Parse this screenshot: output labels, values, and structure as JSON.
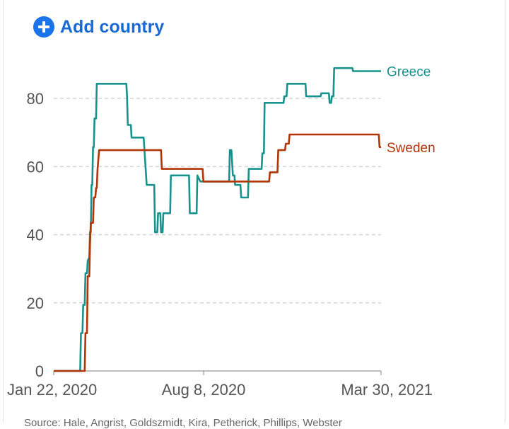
{
  "add_country": {
    "label": "Add country",
    "icon": "plus-circle-icon",
    "color": "#1a73e8"
  },
  "source_text": "Source: Hale, Angrist, Goldszmidt, Kira, Petherick, Phillips, Webster",
  "chart_data": {
    "type": "line",
    "title": "",
    "xlabel": "",
    "ylabel": "",
    "x_range": [
      "2020-01-22",
      "2021-03-30"
    ],
    "x_ticks": [
      "Jan 22, 2020",
      "Aug 8, 2020",
      "Mar 30, 2021"
    ],
    "ylim": [
      0,
      90
    ],
    "y_ticks": [
      0,
      20,
      40,
      60,
      80
    ],
    "grid": "horizontal dashed",
    "legend": "inline at line ends",
    "series": [
      {
        "name": "Greece",
        "color": "#17928c",
        "points": [
          [
            "2020-01-22",
            0
          ],
          [
            "2020-02-26",
            0
          ],
          [
            "2020-02-27",
            11.1
          ],
          [
            "2020-02-29",
            11.1
          ],
          [
            "2020-03-01",
            19.4
          ],
          [
            "2020-03-03",
            19.4
          ],
          [
            "2020-03-04",
            28.7
          ],
          [
            "2020-03-06",
            28.7
          ],
          [
            "2020-03-07",
            32.4
          ],
          [
            "2020-03-09",
            33.3
          ],
          [
            "2020-03-10",
            40.7
          ],
          [
            "2020-03-11",
            40.7
          ],
          [
            "2020-03-12",
            54.6
          ],
          [
            "2020-03-13",
            54.6
          ],
          [
            "2020-03-14",
            65.7
          ],
          [
            "2020-03-15",
            65.7
          ],
          [
            "2020-03-16",
            74.1
          ],
          [
            "2020-03-18",
            74.1
          ],
          [
            "2020-03-19",
            84.3
          ],
          [
            "2020-04-27",
            84.3
          ],
          [
            "2020-04-28",
            80.6
          ],
          [
            "2020-04-29",
            72.2
          ],
          [
            "2020-05-03",
            72.2
          ],
          [
            "2020-05-04",
            68.5
          ],
          [
            "2020-05-20",
            68.5
          ],
          [
            "2020-05-24",
            54.6
          ],
          [
            "2020-06-03",
            54.6
          ],
          [
            "2020-06-04",
            40.7
          ],
          [
            "2020-06-07",
            40.7
          ],
          [
            "2020-06-08",
            46.3
          ],
          [
            "2020-06-11",
            46.3
          ],
          [
            "2020-06-12",
            40.7
          ],
          [
            "2020-06-14",
            40.7
          ],
          [
            "2020-06-15",
            46.3
          ],
          [
            "2020-06-24",
            46.3
          ],
          [
            "2020-06-25",
            57.4
          ],
          [
            "2020-07-19",
            57.4
          ],
          [
            "2020-07-20",
            46.3
          ],
          [
            "2020-07-29",
            46.3
          ],
          [
            "2020-07-30",
            57.4
          ],
          [
            "2020-08-03",
            55.6
          ],
          [
            "2020-09-10",
            55.6
          ],
          [
            "2020-09-11",
            64.8
          ],
          [
            "2020-09-13",
            64.8
          ],
          [
            "2020-09-15",
            57.4
          ],
          [
            "2020-09-17",
            57.4
          ],
          [
            "2020-09-18",
            54.6
          ],
          [
            "2020-09-25",
            54.6
          ],
          [
            "2020-09-26",
            50.9
          ],
          [
            "2020-10-05",
            50.9
          ],
          [
            "2020-10-06",
            59.3
          ],
          [
            "2020-10-23",
            59.3
          ],
          [
            "2020-10-24",
            63.9
          ],
          [
            "2020-10-26",
            63.9
          ],
          [
            "2020-10-27",
            78.7
          ],
          [
            "2020-11-21",
            78.7
          ],
          [
            "2020-11-22",
            80.6
          ],
          [
            "2020-11-25",
            80.6
          ],
          [
            "2020-11-26",
            84.3
          ],
          [
            "2020-12-20",
            84.3
          ],
          [
            "2020-12-21",
            80.6
          ],
          [
            "2021-01-09",
            80.6
          ],
          [
            "2021-01-10",
            81.5
          ],
          [
            "2021-01-20",
            81.5
          ],
          [
            "2021-01-21",
            78.7
          ],
          [
            "2021-01-23",
            78.7
          ],
          [
            "2021-01-24",
            80.6
          ],
          [
            "2021-01-26",
            80.6
          ],
          [
            "2021-01-27",
            88.9
          ],
          [
            "2021-02-20",
            88.9
          ],
          [
            "2021-02-21",
            88.0
          ],
          [
            "2021-03-30",
            88.0
          ]
        ]
      },
      {
        "name": "Sweden",
        "color": "#b13507",
        "points": [
          [
            "2020-01-22",
            0
          ],
          [
            "2020-03-03",
            0
          ],
          [
            "2020-03-04",
            11.1
          ],
          [
            "2020-03-06",
            11.1
          ],
          [
            "2020-03-07",
            27.8
          ],
          [
            "2020-03-09",
            27.8
          ],
          [
            "2020-03-10",
            37.0
          ],
          [
            "2020-03-11",
            43.5
          ],
          [
            "2020-03-14",
            43.5
          ],
          [
            "2020-03-15",
            50.9
          ],
          [
            "2020-03-17",
            50.9
          ],
          [
            "2020-03-18",
            53.7
          ],
          [
            "2020-03-19",
            53.7
          ],
          [
            "2020-03-20",
            59.3
          ],
          [
            "2020-03-22",
            64.8
          ],
          [
            "2020-06-12",
            64.8
          ],
          [
            "2020-06-13",
            59.3
          ],
          [
            "2020-08-06",
            59.3
          ],
          [
            "2020-08-07",
            55.6
          ],
          [
            "2020-11-02",
            55.6
          ],
          [
            "2020-11-03",
            58.3
          ],
          [
            "2020-11-13",
            58.3
          ],
          [
            "2020-11-14",
            64.8
          ],
          [
            "2020-11-23",
            64.8
          ],
          [
            "2020-11-24",
            66.7
          ],
          [
            "2020-11-28",
            66.7
          ],
          [
            "2020-11-29",
            69.4
          ],
          [
            "2021-03-27",
            69.4
          ],
          [
            "2021-03-28",
            65.7
          ],
          [
            "2021-03-30",
            65.7
          ]
        ]
      }
    ]
  }
}
